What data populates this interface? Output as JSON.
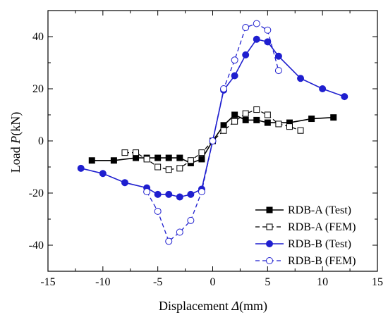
{
  "chart_data": {
    "type": "line",
    "title": "",
    "xlabel_main": "Displacement ",
    "xlabel_symbol": "Δ",
    "xlabel_unit": "(mm)",
    "ylabel_main": "Load ",
    "ylabel_symbol": "P",
    "ylabel_unit": "(kN)",
    "xlim": [
      -15,
      15
    ],
    "ylim": [
      -50,
      50
    ],
    "xticks": [
      -15,
      -10,
      -5,
      0,
      5,
      10,
      15
    ],
    "yticks": [
      -40,
      -20,
      0,
      20,
      40
    ],
    "grid": false,
    "legend_position": "bottom-right",
    "series": [
      {
        "name": "RDB-A (Test)",
        "color": "#000000",
        "line": "solid",
        "marker": "square",
        "filled": true,
        "x": [
          -11,
          -9,
          -7,
          -6,
          -5,
          -4,
          -3,
          -2,
          -1,
          0,
          1,
          2,
          3,
          4,
          5,
          7,
          9,
          11
        ],
        "y": [
          -7.5,
          -7.5,
          -6.5,
          -6.5,
          -6.5,
          -6.5,
          -6.5,
          -8.5,
          -7,
          0,
          6,
          10,
          8,
          8,
          7,
          7,
          8.5,
          9
        ]
      },
      {
        "name": "RDB-A (FEM)",
        "color": "#000000",
        "line": "dashed",
        "marker": "square",
        "filled": false,
        "x": [
          -8,
          -7,
          -6,
          -5,
          -4,
          -3,
          -2,
          -1,
          0,
          1,
          2,
          3,
          4,
          5,
          6,
          7,
          8
        ],
        "y": [
          -4.5,
          -4.5,
          -7,
          -10,
          -11,
          -10.5,
          -7.5,
          -4.5,
          0,
          4,
          7.5,
          10.5,
          12,
          10,
          6.5,
          5.5,
          4
        ]
      },
      {
        "name": "RDB-B (Test)",
        "color": "#1f1fcf",
        "line": "solid",
        "marker": "circle",
        "filled": true,
        "x": [
          -12,
          -10,
          -8,
          -6,
          -5,
          -4,
          -3,
          -2,
          -1,
          0,
          1,
          2,
          3,
          4,
          5,
          6,
          8,
          10,
          12
        ],
        "y": [
          -10.5,
          -12.5,
          -16,
          -18,
          -20.5,
          -20.5,
          -21.5,
          -20.5,
          -18.5,
          0,
          19.5,
          25,
          33,
          39,
          38,
          32.5,
          24,
          20,
          17
        ]
      },
      {
        "name": "RDB-B (FEM)",
        "color": "#1f1fcf",
        "line": "dashed",
        "marker": "circle",
        "filled": false,
        "x": [
          -6,
          -5,
          -4,
          -3,
          -2,
          -1,
          0,
          1,
          2,
          3,
          4,
          5,
          6
        ],
        "y": [
          -19.5,
          -27,
          -38.5,
          -35,
          -30.5,
          -19.5,
          0,
          20,
          31,
          43.5,
          45,
          42.5,
          27
        ]
      }
    ]
  }
}
